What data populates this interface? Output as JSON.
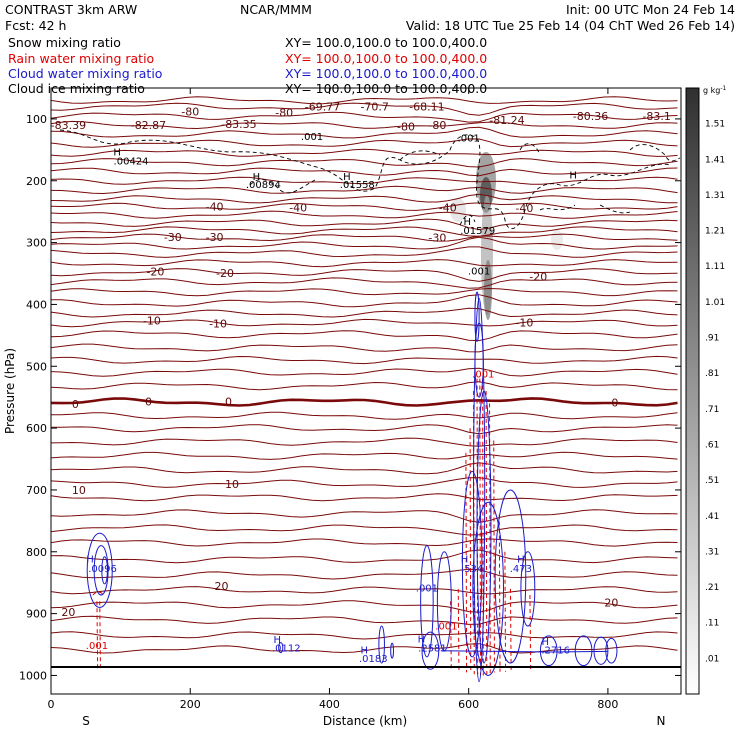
{
  "header": {
    "title_left": "CONTRAST  3km ARW",
    "title_center": "NCAR/MMM",
    "init": "Init: 00 UTC Mon 24 Feb 14",
    "fcst": "Fcst:    42 h",
    "valid": "Valid: 18 UTC Tue 25 Feb 14 (04 ChT Wed 26 Feb 14)",
    "fields": [
      {
        "label": "Snow mixing ratio",
        "color": "#000000",
        "xy": "XY=  100.0,100.0 to 100.0,400.0"
      },
      {
        "label": "Rain water mixing ratio",
        "color": "#e00000",
        "xy": "XY=  100.0,100.0 to 100.0,400.0"
      },
      {
        "label": "Cloud water mixing ratio",
        "color": "#1a1acc",
        "xy": "XY=  100.0,100.0 to 100.0,400.0"
      },
      {
        "label": "Cloud ice mixing ratio",
        "color": "#000000",
        "xy": "XY=  100.0,100.0 to 100.0,400.0"
      }
    ]
  },
  "chart_data": {
    "type": "cross-section contour",
    "xlabel": "Distance (km)",
    "ylabel": "Pressure (hPa)",
    "xlim": [
      0,
      905
    ],
    "ylim": [
      1030,
      50
    ],
    "x_ticks": [
      0,
      200,
      400,
      600,
      800
    ],
    "y_ticks": [
      100,
      200,
      300,
      400,
      500,
      600,
      700,
      800,
      900,
      1000
    ],
    "x_end_labels": {
      "left": "S",
      "right": "N"
    },
    "colorbar": {
      "unit": "g kg",
      "unit_exp": "-1",
      "labels": [
        "1.51",
        "1.41",
        "1.31",
        "1.21",
        "1.11",
        "1.01",
        ".91",
        ".81",
        ".71",
        ".61",
        ".51",
        ".41",
        ".31",
        ".21",
        ".11",
        ".01"
      ],
      "color_high": "#303030",
      "color_low": "#ffffff"
    },
    "temperature_isotherm_labels": [
      {
        "text": "-69.77",
        "x": 390,
        "p": 80
      },
      {
        "text": "-70.7",
        "x": 465,
        "p": 80
      },
      {
        "text": "-68.11",
        "x": 540,
        "p": 80
      },
      {
        "text": "-83.39",
        "x": 25,
        "p": 110
      },
      {
        "text": "-82.87",
        "x": 140,
        "p": 110
      },
      {
        "text": "-83.35",
        "x": 270,
        "p": 108
      },
      {
        "text": "-81.24",
        "x": 655,
        "p": 102
      },
      {
        "text": "-80.36",
        "x": 775,
        "p": 95
      },
      {
        "text": "-83.1",
        "x": 870,
        "p": 95
      },
      {
        "text": "-80",
        "x": 200,
        "p": 88
      },
      {
        "text": "-80",
        "x": 335,
        "p": 90
      },
      {
        "text": "-80",
        "x": 510,
        "p": 112
      },
      {
        "text": "-80",
        "x": 555,
        "p": 110
      },
      {
        "text": "-40",
        "x": 235,
        "p": 242
      },
      {
        "text": "-40",
        "x": 355,
        "p": 243
      },
      {
        "text": "-40",
        "x": 570,
        "p": 243
      },
      {
        "text": "-40",
        "x": 680,
        "p": 244
      },
      {
        "text": "-30",
        "x": 175,
        "p": 291
      },
      {
        "text": "-30",
        "x": 235,
        "p": 291
      },
      {
        "text": "-30",
        "x": 555,
        "p": 292
      },
      {
        "text": "-20",
        "x": 150,
        "p": 347
      },
      {
        "text": "-20",
        "x": 250,
        "p": 349
      },
      {
        "text": "-20",
        "x": 700,
        "p": 355
      },
      {
        "text": "-10",
        "x": 145,
        "p": 426
      },
      {
        "text": "-10",
        "x": 240,
        "p": 431
      },
      {
        "text": "-10",
        "x": 680,
        "p": 429
      },
      {
        "text": "0",
        "x": 35,
        "p": 561
      },
      {
        "text": "0",
        "x": 140,
        "p": 557
      },
      {
        "text": "0",
        "x": 255,
        "p": 557
      },
      {
        "text": "0",
        "x": 810,
        "p": 559
      },
      {
        "text": "10",
        "x": 40,
        "p": 700
      },
      {
        "text": "10",
        "x": 260,
        "p": 690
      },
      {
        "text": "20",
        "x": 25,
        "p": 897
      },
      {
        "text": "20",
        "x": 245,
        "p": 855
      },
      {
        "text": "20",
        "x": 805,
        "p": 882
      }
    ],
    "extrema_labels": [
      {
        "text": "H",
        "x": 95,
        "p": 153,
        "color": "#000000"
      },
      {
        "text": ".00424",
        "x": 115,
        "p": 167,
        "color": "#000000"
      },
      {
        "text": "H",
        "x": 295,
        "p": 192,
        "color": "#000000"
      },
      {
        "text": ".00894",
        "x": 305,
        "p": 205,
        "color": "#000000"
      },
      {
        "text": "H",
        "x": 425,
        "p": 192,
        "color": "#000000"
      },
      {
        "text": ".01558",
        "x": 440,
        "p": 205,
        "color": "#000000"
      },
      {
        "text": "H",
        "x": 750,
        "p": 190,
        "color": "#000000"
      },
      {
        "text": "H",
        "x": 598,
        "p": 265,
        "color": "#000000"
      },
      {
        "text": ".01579",
        "x": 613,
        "p": 280,
        "color": "#000000"
      },
      {
        "text": ".001",
        "x": 600,
        "p": 130,
        "color": "#000000"
      },
      {
        "text": ".001",
        "x": 375,
        "p": 128,
        "color": "#000000"
      },
      {
        "text": ".001",
        "x": 615,
        "p": 345,
        "color": "#000000"
      },
      {
        "text": "H",
        "x": 56,
        "p": 811,
        "color": "#1a1acc"
      },
      {
        "text": ".0096",
        "x": 74,
        "p": 826,
        "color": "#1a1acc"
      },
      {
        "text": ".001",
        "x": 66,
        "p": 951,
        "color": "#e00000"
      },
      {
        "text": "H",
        "x": 325,
        "p": 941,
        "color": "#1a1acc"
      },
      {
        "text": ".0112",
        "x": 338,
        "p": 955,
        "color": "#1a1acc"
      },
      {
        "text": "H",
        "x": 450,
        "p": 958,
        "color": "#1a1acc"
      },
      {
        "text": ".0183",
        "x": 463,
        "p": 972,
        "color": "#1a1acc"
      },
      {
        "text": "H",
        "x": 532,
        "p": 940,
        "color": "#1a1acc"
      },
      {
        "text": ".2581",
        "x": 548,
        "p": 955,
        "color": "#1a1acc"
      },
      {
        "text": ".001",
        "x": 540,
        "p": 858,
        "color": "#1a1acc"
      },
      {
        "text": ".001",
        "x": 568,
        "p": 919,
        "color": "#e00000"
      },
      {
        "text": "H",
        "x": 594,
        "p": 811,
        "color": "#1a1acc"
      },
      {
        "text": ".534",
        "x": 605,
        "p": 826,
        "color": "#1a1acc"
      },
      {
        "text": "H",
        "x": 675,
        "p": 811,
        "color": "#1a1acc"
      },
      {
        "text": ".473",
        "x": 675,
        "p": 826,
        "color": "#1a1acc"
      },
      {
        "text": "H",
        "x": 710,
        "p": 944,
        "color": "#1a1acc"
      },
      {
        "text": ".2716",
        "x": 725,
        "p": 958,
        "color": "#1a1acc"
      },
      {
        "text": ".001",
        "x": 621,
        "p": 512,
        "color": "#e00000"
      }
    ]
  }
}
